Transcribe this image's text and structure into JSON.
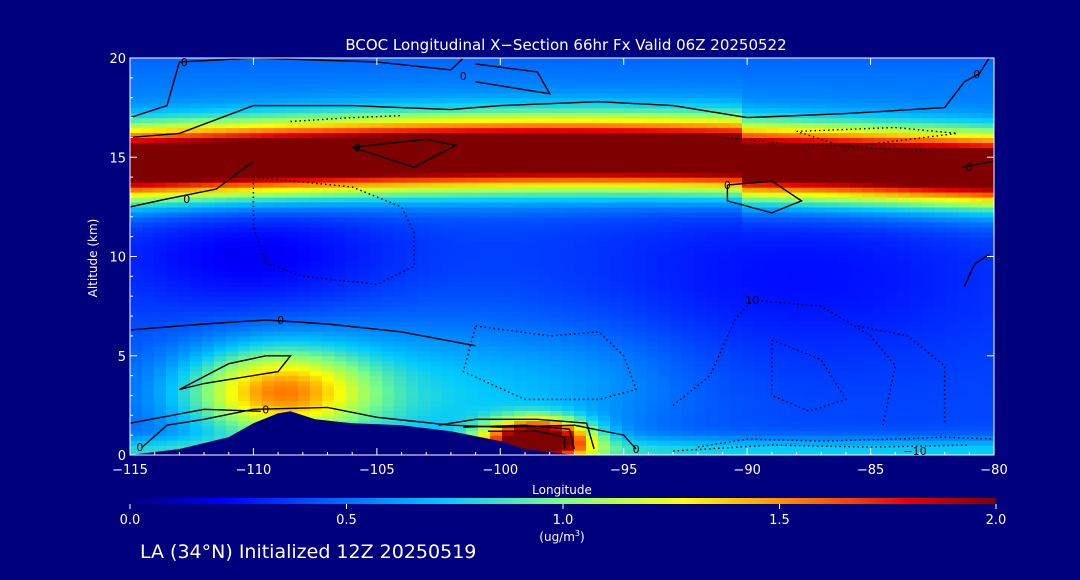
{
  "chart_data": {
    "type": "heatmap",
    "title": "BCOC Longitudinal X−Section 66hr  Fx Valid 06Z 20250522",
    "xlabel": "Longitude",
    "ylabel": "Altitude (km)",
    "xlim": [
      -115,
      -80
    ],
    "ylim": [
      0,
      20
    ],
    "x_ticks": [
      -115,
      -110,
      -105,
      -100,
      -95,
      -90,
      -85,
      -80
    ],
    "x_tick_labels": [
      "−115",
      "−110",
      "−105",
      "−100",
      "−95",
      "−90",
      "−85",
      "−80"
    ],
    "y_ticks": [
      0,
      5,
      10,
      15,
      20
    ],
    "y_tick_labels": [
      "0",
      "5",
      "10",
      "15",
      "20"
    ],
    "colorbar": {
      "label_line1": "(ug/m",
      "label_exp": "3",
      "label_line2": ")",
      "range": [
        0.0,
        2.0
      ],
      "ticks": [
        0.0,
        0.5,
        1.0,
        1.5,
        2.0
      ],
      "tick_labels": [
        "0.0",
        "0.5",
        "1.0",
        "1.5",
        "2.0"
      ]
    },
    "contour_labels": [
      {
        "text": "0",
        "lon": -112.8,
        "alt": 19.8
      },
      {
        "text": "0",
        "lon": -101.5,
        "alt": 19.1
      },
      {
        "text": "0",
        "lon": -80.7,
        "alt": 19.2
      },
      {
        "text": "0",
        "lon": -105.8,
        "alt": 15.5
      },
      {
        "text": "0",
        "lon": -90.8,
        "alt": 13.6
      },
      {
        "text": "0",
        "lon": -81.0,
        "alt": 14.5
      },
      {
        "text": "0",
        "lon": -112.7,
        "alt": 12.9
      },
      {
        "text": "0",
        "lon": -108.9,
        "alt": 6.8
      },
      {
        "text": "0",
        "lon": -109.5,
        "alt": 2.3
      },
      {
        "text": "10",
        "lon": -89.8,
        "alt": 7.8
      },
      {
        "text": "−10",
        "lon": -83.2,
        "alt": 0.2
      },
      {
        "text": "0",
        "lon": -114.6,
        "alt": 0.4
      },
      {
        "text": "0",
        "lon": -94.5,
        "alt": 0.3
      }
    ],
    "terrain": {
      "lon": [
        -115,
        -113,
        -111,
        -110,
        -109,
        -108.5,
        -107.5,
        -106,
        -104,
        -102,
        -100,
        -99,
        -97
      ],
      "alt": [
        0,
        0.3,
        0.9,
        1.6,
        2.1,
        2.2,
        1.8,
        1.6,
        1.5,
        1.2,
        0.7,
        0.3,
        0
      ]
    },
    "fields": {
      "upper_band": {
        "alt_center": 14.7,
        "width_km": 1.2,
        "peak_ug_m3": 2.0
      },
      "surface_plume": {
        "lon": -98.5,
        "alt": 0.8,
        "peak_ug_m3": 2.0
      },
      "rockies_plume": {
        "lon": -109.0,
        "alt": 3.2,
        "peak_ug_m3": 1.3
      },
      "background_ug_m3": 0.4
    }
  },
  "footer": {
    "init_text": "LA (34°N) Initialized 12Z 20250519"
  }
}
